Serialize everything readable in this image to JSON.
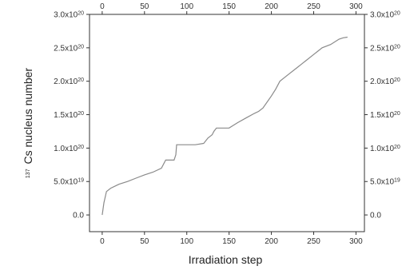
{
  "chart_data": {
    "type": "line",
    "xlabel": "Irradiation step",
    "ylabel_sup": "137",
    "ylabel_main": "Cs nucleus number",
    "xlim": [
      -15,
      310
    ],
    "ylim": [
      -2.5e+19,
      3e+20
    ],
    "x_ticks": [
      0,
      50,
      100,
      150,
      200,
      250,
      300
    ],
    "y_ticks": [
      {
        "value": 0,
        "mant": "0.0",
        "exp": ""
      },
      {
        "value": 5e+19,
        "mant": "5.0x10",
        "exp": "19"
      },
      {
        "value": 1e+20,
        "mant": "1.0x10",
        "exp": "20"
      },
      {
        "value": 1.5e+20,
        "mant": "1.5x10",
        "exp": "20"
      },
      {
        "value": 2e+20,
        "mant": "2.0x10",
        "exp": "20"
      },
      {
        "value": 2.5e+20,
        "mant": "2.5x10",
        "exp": "20"
      },
      {
        "value": 3e+20,
        "mant": "3.0x10",
        "exp": "20"
      }
    ],
    "series": [
      {
        "color": "#8a8a8a",
        "x": [
          0,
          2,
          5,
          10,
          15,
          20,
          30,
          40,
          50,
          60,
          70,
          75,
          85,
          87,
          88,
          100,
          110,
          120,
          125,
          128,
          130,
          132,
          135,
          140,
          150,
          160,
          170,
          180,
          185,
          190,
          200,
          205,
          210,
          220,
          230,
          235,
          240,
          250,
          255,
          260,
          270,
          280,
          285,
          290
        ],
        "y": [
          0,
          1.8e+19,
          3.5e+19,
          4e+19,
          4.3e+19,
          4.6e+19,
          5e+19,
          5.5e+19,
          6e+19,
          6.4e+19,
          7e+19,
          8.2e+19,
          8.2e+19,
          9e+19,
          1.05e+20,
          1.05e+20,
          1.05e+20,
          1.07e+20,
          1.15e+20,
          1.18e+20,
          1.2e+20,
          1.25e+20,
          1.3e+20,
          1.3e+20,
          1.3e+20,
          1.38e+20,
          1.45e+20,
          1.52e+20,
          1.55e+20,
          1.6e+20,
          1.78e+20,
          1.88e+20,
          2e+20,
          2.1e+20,
          2.2e+20,
          2.25e+20,
          2.3e+20,
          2.4e+20,
          2.45e+20,
          2.5e+20,
          2.55e+20,
          2.63e+20,
          2.65e+20,
          2.66e+20
        ]
      }
    ]
  }
}
